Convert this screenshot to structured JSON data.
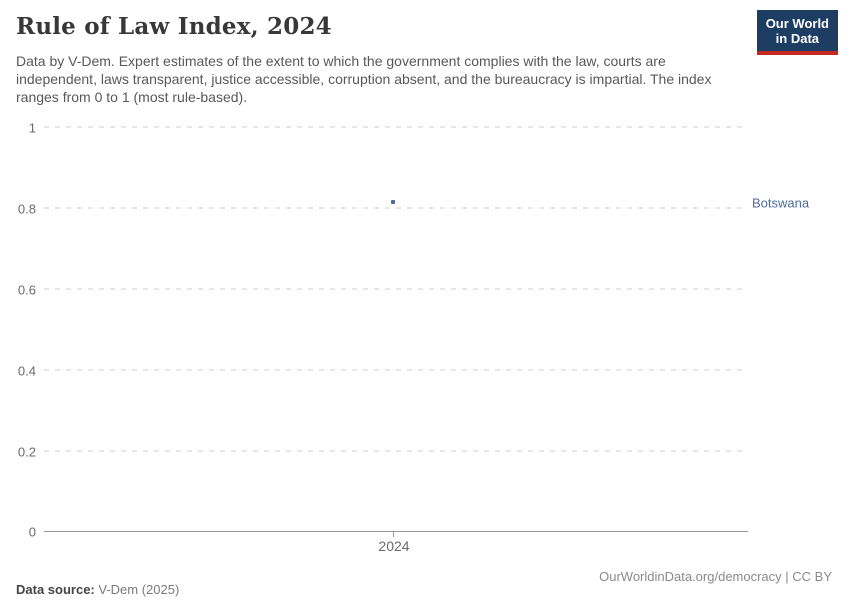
{
  "header": {
    "title": "Rule of Law Index, 2024",
    "subtitle": "Data by V-Dem. Expert estimates of the extent to which the government complies with the law, courts are independent, laws transparent, justice accessible, corruption absent, and the bureaucracy is impartial. The index ranges from 0 to 1 (most rule-based).",
    "logo": {
      "line1": "Our World",
      "line2": "in Data",
      "bg_color": "#1d3d63",
      "accent_color": "#c5291f"
    }
  },
  "chart_data": {
    "type": "scatter",
    "title": "Rule of Law Index, 2024",
    "xlabel": "",
    "ylabel": "",
    "ylim": [
      0,
      1
    ],
    "yticks": [
      "1",
      "0.8",
      "0.6",
      "0.4",
      "0.2",
      "0"
    ],
    "xticks": [
      "2024"
    ],
    "grid": "horizontal-dashed",
    "legend_position": "right-of-point",
    "series": [
      {
        "name": "Botswana",
        "x": 2024,
        "y": 0.81,
        "color": "#4c6a9c",
        "marker": "square"
      }
    ]
  },
  "footer": {
    "source_label": "Data source:",
    "source_value": "V-Dem (2025)",
    "credit": "OurWorldinData.org/democracy | CC BY"
  }
}
